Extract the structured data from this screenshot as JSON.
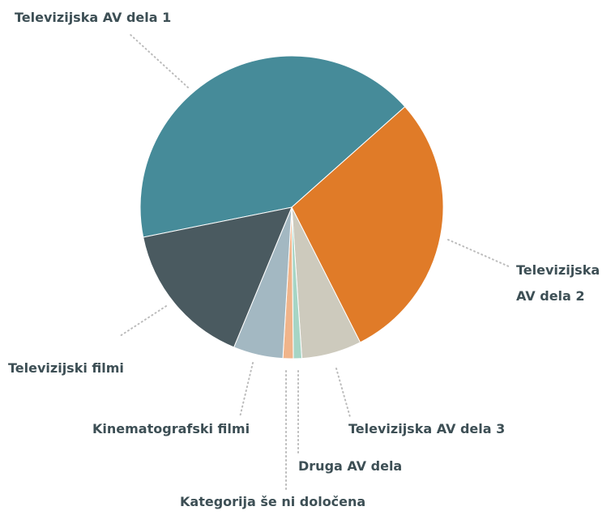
{
  "chart_data": {
    "type": "pie",
    "categories": [
      "Televizijska AV dela 1",
      "Televizijska AV dela 2",
      "Televizijska AV dela 3",
      "Druga AV dela",
      "Kategorija še ni določena",
      "Kinematografski filmi",
      "Televizijski filmi"
    ],
    "values": [
      41.6,
      29.1,
      6.4,
      0.9,
      1.1,
      5.3,
      15.6
    ],
    "colors": [
      "#468b99",
      "#e07b28",
      "#cdcabd",
      "#a6d5c5",
      "#f0b48a",
      "#a3b8c2",
      "#4a5a60"
    ]
  }
}
